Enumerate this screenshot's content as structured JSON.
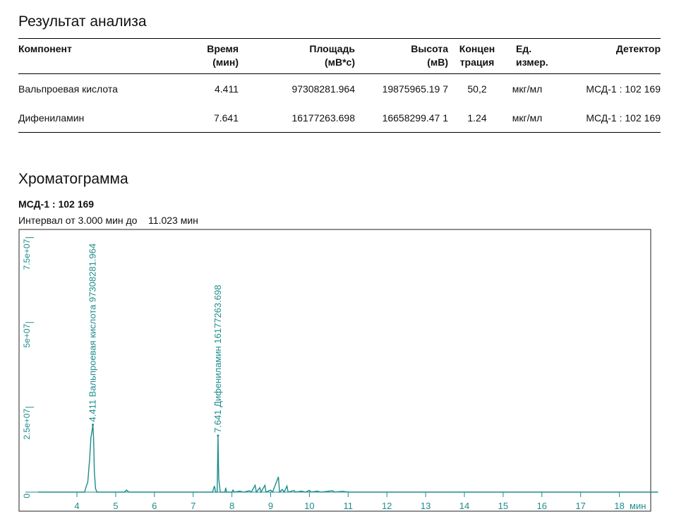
{
  "results": {
    "title": "Результат анализа",
    "columns": {
      "component": "Компонент",
      "time": [
        "Время",
        "(мин)"
      ],
      "area": [
        "Площадь",
        "(мВ*с)"
      ],
      "height": [
        "Высота",
        "(мВ)"
      ],
      "concentration": [
        "Концен",
        "трация"
      ],
      "unit": [
        "Ед.",
        "измер."
      ],
      "detector": "Детектор"
    },
    "rows": [
      {
        "component": "Вальпроевая кислота",
        "time": "4.411",
        "area": "97308281.964",
        "height": "19875965.19 7",
        "concentration": "50,2",
        "unit": "мкг/мл",
        "detector": "МСД-1 : 102 169"
      },
      {
        "component": "Дифениламин",
        "time": "7.641",
        "area": "16177263.698",
        "height": "16658299.47 1",
        "concentration": "1.24",
        "unit": "мкг/мл",
        "detector": "МСД-1 : 102 169"
      }
    ]
  },
  "chromatogram": {
    "title": "Хроматограмма",
    "detector": "МСД-1 : 102 169",
    "interval_prefix": "Интервал от 3.000 мин до",
    "interval_end": "11.023 мин"
  },
  "chart_data": {
    "type": "line",
    "color": "#1e8c8c",
    "xlabel": "мин",
    "xlim": [
      3.0,
      19.0
    ],
    "ylim": [
      0,
      77000000
    ],
    "x_ticks": [
      "4",
      "5",
      "6",
      "7",
      "8",
      "9",
      "10",
      "11",
      "12",
      "13",
      "14",
      "15",
      "16",
      "17",
      "18"
    ],
    "y_ticks": [
      {
        "value": 0,
        "label": "0"
      },
      {
        "value": 25000000,
        "label": "2.5e+07"
      },
      {
        "value": 50000000,
        "label": "5e+07"
      },
      {
        "value": 75000000,
        "label": "7.5e+07"
      }
    ],
    "peaks": [
      {
        "x": 4.411,
        "y": 19875965,
        "label": "4.411  Вальпроевая кислота  97308281.964"
      },
      {
        "x": 7.641,
        "y": 16658299,
        "label": "7.641  Дифениламин  16177263.698"
      }
    ],
    "trace": [
      [
        3.0,
        0
      ],
      [
        4.2,
        0
      ],
      [
        4.22,
        1000000
      ],
      [
        4.28,
        3000000
      ],
      [
        4.33,
        10000000
      ],
      [
        4.36,
        16000000
      ],
      [
        4.39,
        18000000
      ],
      [
        4.411,
        19875965
      ],
      [
        4.43,
        16000000
      ],
      [
        4.45,
        6000000
      ],
      [
        4.48,
        1000000
      ],
      [
        4.52,
        0
      ],
      [
        5.22,
        0
      ],
      [
        5.28,
        600000
      ],
      [
        5.34,
        0
      ],
      [
        7.5,
        0
      ],
      [
        7.55,
        1800000
      ],
      [
        7.58,
        0
      ],
      [
        7.62,
        0
      ],
      [
        7.641,
        16658299
      ],
      [
        7.66,
        4000000
      ],
      [
        7.7,
        0
      ],
      [
        7.82,
        0
      ],
      [
        7.84,
        1300000
      ],
      [
        7.86,
        0
      ],
      [
        8.0,
        0
      ],
      [
        8.03,
        600000
      ],
      [
        8.06,
        0
      ],
      [
        8.2,
        300000
      ],
      [
        8.3,
        0
      ],
      [
        8.45,
        400000
      ],
      [
        8.5,
        0
      ],
      [
        8.6,
        2000000
      ],
      [
        8.63,
        0
      ],
      [
        8.72,
        1300000
      ],
      [
        8.75,
        0
      ],
      [
        8.85,
        2000000
      ],
      [
        8.88,
        0
      ],
      [
        9.0,
        600000
      ],
      [
        9.05,
        0
      ],
      [
        9.2,
        4500000
      ],
      [
        9.23,
        0
      ],
      [
        9.3,
        800000
      ],
      [
        9.35,
        0
      ],
      [
        9.42,
        1800000
      ],
      [
        9.45,
        0
      ],
      [
        9.6,
        500000
      ],
      [
        9.65,
        0
      ],
      [
        9.8,
        300000
      ],
      [
        9.9,
        0
      ],
      [
        10.0,
        500000
      ],
      [
        10.05,
        0
      ],
      [
        10.2,
        300000
      ],
      [
        10.3,
        0
      ],
      [
        10.6,
        400000
      ],
      [
        10.65,
        0
      ],
      [
        10.85,
        200000
      ],
      [
        11.02,
        0
      ],
      [
        19.0,
        0
      ]
    ]
  }
}
